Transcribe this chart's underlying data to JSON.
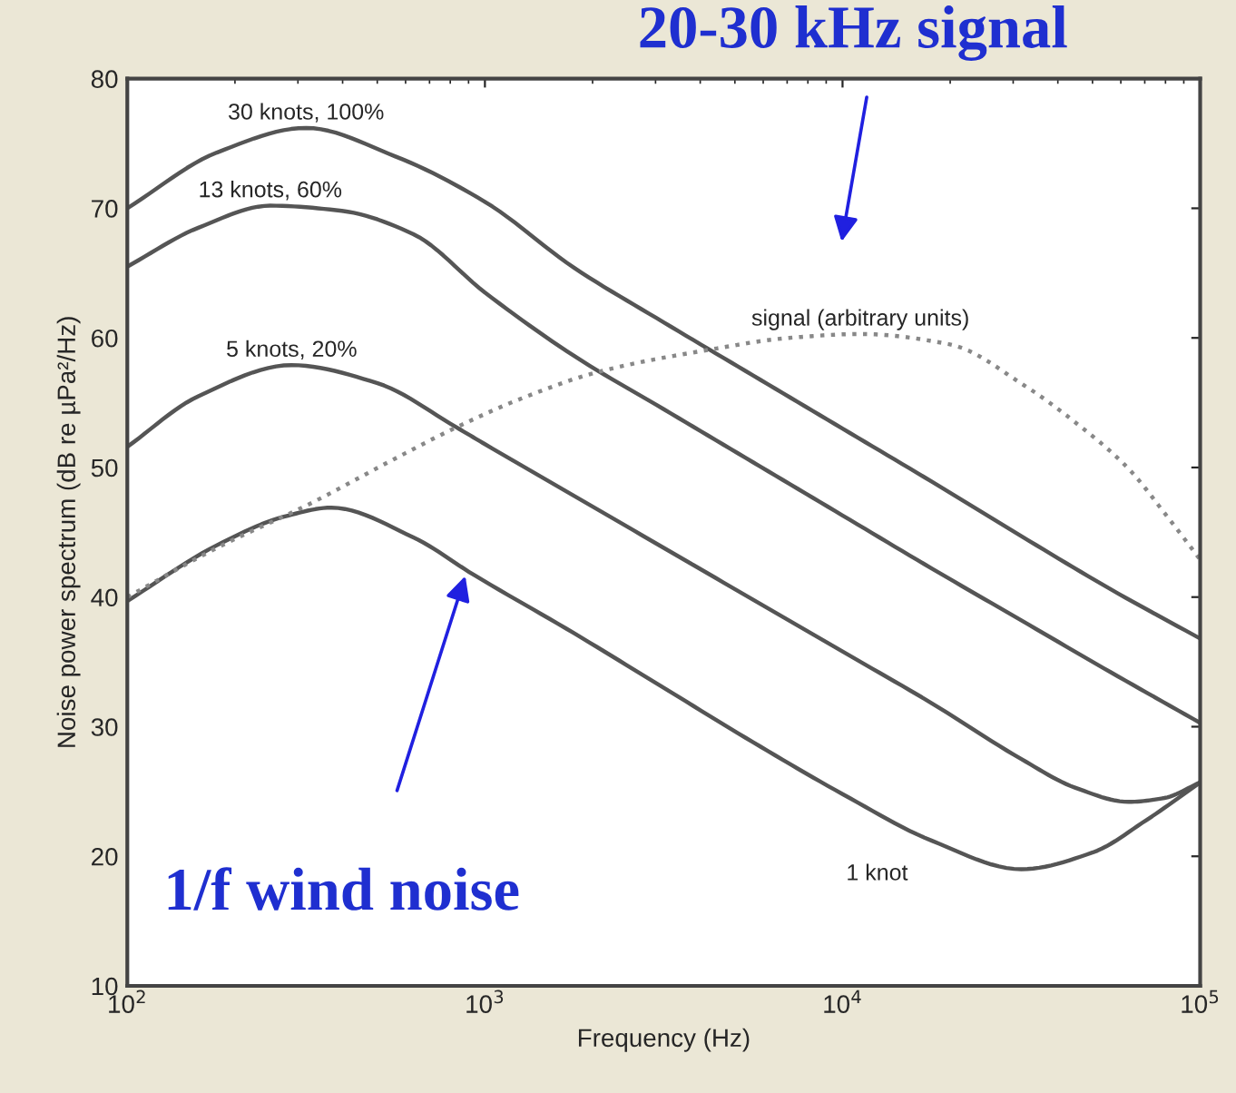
{
  "chart_data": {
    "type": "line",
    "title": "20-30 kHz signal",
    "xlabel": "Frequency (Hz)",
    "ylabel": "Noise power spectrum (dB re µPa²/Hz)",
    "log": "x",
    "xlim": [
      100,
      100000
    ],
    "ylim": [
      10,
      80
    ],
    "xticks": [
      {
        "value": 100,
        "label": "10$^{2}$"
      },
      {
        "value": 1000,
        "label": "10$^{3}$"
      },
      {
        "value": 10000,
        "label": "10$^{4}$"
      },
      {
        "value": 100000,
        "label": "10$^{5}$"
      }
    ],
    "yticks": [
      10,
      20,
      30,
      40,
      50,
      60,
      70,
      80
    ],
    "grid": false,
    "legend": false,
    "series": [
      {
        "name": "30 knots, 100%",
        "color": "#555555",
        "line_style": "solid",
        "x": [
          100,
          178,
          316,
          562,
          1000,
          1778,
          3162,
          5623,
          10000,
          17783,
          31623,
          56234,
          100000
        ],
        "values": [
          70,
          74.3,
          76.2,
          74,
          70.5,
          65.4,
          61.2,
          57.1,
          53,
          48.9,
          44.7,
          40.6,
          36.8
        ]
      },
      {
        "name": "13 knots, 60%",
        "color": "#555555",
        "line_style": "solid",
        "x": [
          100,
          158,
          251,
          398,
          631,
          1000,
          1778,
          3162,
          5623,
          10000,
          17783,
          31623,
          56234,
          100000
        ],
        "values": [
          65.5,
          68.5,
          70.2,
          69.8,
          68,
          63.5,
          58.6,
          54.5,
          50.4,
          46.3,
          42.2,
          38.2,
          34.2,
          30.3
        ]
      },
      {
        "name": "5 knots, 20%",
        "color": "#555555",
        "line_style": "solid",
        "x": [
          100,
          158,
          288,
          501,
          832,
          1000,
          1778,
          3162,
          5623,
          10000,
          17783,
          31623,
          44668,
          63096,
          79433,
          100000
        ],
        "values": [
          51.6,
          55.5,
          57.9,
          56.5,
          53.1,
          51.8,
          47.8,
          43.8,
          39.8,
          35.8,
          31.8,
          27.5,
          25.3,
          24.2,
          24.5,
          25.7
        ]
      },
      {
        "name": "1 knot",
        "color": "#555555",
        "line_style": "solid",
        "x": [
          100,
          178,
          274,
          372,
          631,
          933,
          1778,
          3162,
          5623,
          10000,
          17783,
          31623,
          50119,
          70795,
          100000
        ],
        "values": [
          39.7,
          44,
          46.2,
          46.9,
          44.6,
          41.7,
          37.2,
          33,
          28.8,
          24.8,
          21.2,
          19,
          20.3,
          22.8,
          25.7
        ]
      },
      {
        "name": "signal (arbitrary units)",
        "color": "#888888",
        "line_style": "dotted",
        "x": [
          100,
          178,
          324,
          562,
          832,
          1259,
          2089,
          4266,
          7079,
          11220,
          19953,
          32359,
          44668,
          63096,
          79433,
          100000
        ],
        "values": [
          40,
          43.8,
          47.2,
          50.7,
          53.1,
          55.3,
          57.4,
          59.1,
          60,
          60.3,
          59.5,
          56.3,
          53.5,
          49.9,
          46.5,
          42.9
        ]
      }
    ],
    "annotations": [
      {
        "text": "1/f wind noise",
        "x": 890,
        "y": 42
      }
    ]
  }
}
